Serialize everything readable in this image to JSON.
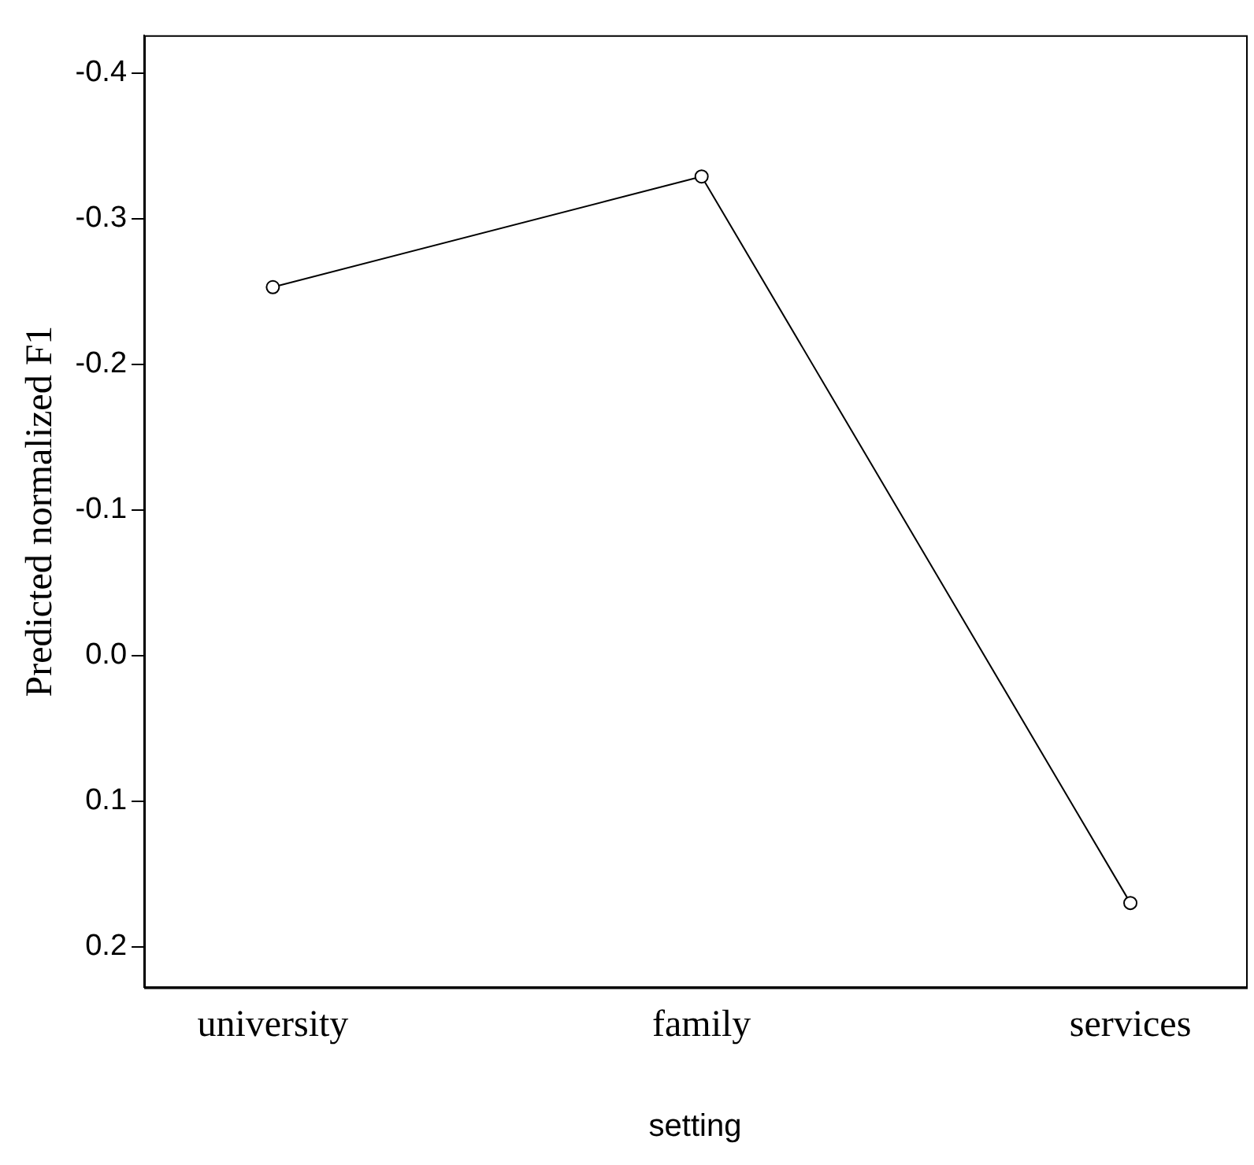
{
  "chart_data": {
    "type": "line",
    "xlabel": "setting",
    "ylabel": "Predicted normalized F1",
    "categories": [
      "university",
      "family",
      "services"
    ],
    "series": [
      {
        "color": "#000000",
        "values": [
          -0.253,
          -0.329,
          0.17
        ]
      }
    ],
    "ylim": [
      0.228,
      -0.426
    ],
    "yticks": [
      -0.4,
      -0.3,
      -0.2,
      -0.1,
      {
        "value": 0,
        "label": "0.0"
      },
      0.1,
      0.2
    ],
    "marker": "circle",
    "line_style": "solid",
    "grid": false,
    "legend": false
  }
}
